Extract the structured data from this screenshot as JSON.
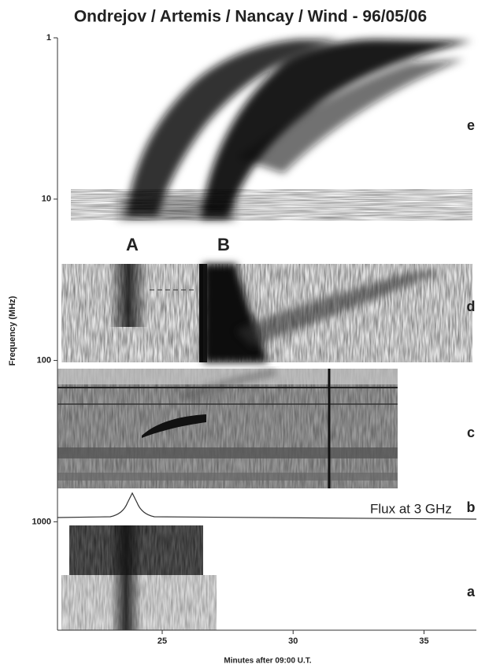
{
  "chart_data": {
    "type": "spectrogram",
    "title": "Ondrejov / Artemis / Nancay / Wind - 96/05/06",
    "x_label": "Minutes after 09:00 U.T.",
    "y_label": "Frequency (MHz)",
    "xlim": [
      21,
      37
    ],
    "xticks": [
      25,
      30,
      35
    ],
    "ylim": [
      1,
      4700
    ],
    "yticks": [
      1,
      10,
      100,
      1000
    ],
    "log_y": true,
    "panel_labels": [
      "e",
      "d",
      "c",
      "b",
      "a"
    ],
    "burst_labels": [
      "A",
      "B"
    ],
    "annotation": "Flux at 3 GHz"
  }
}
